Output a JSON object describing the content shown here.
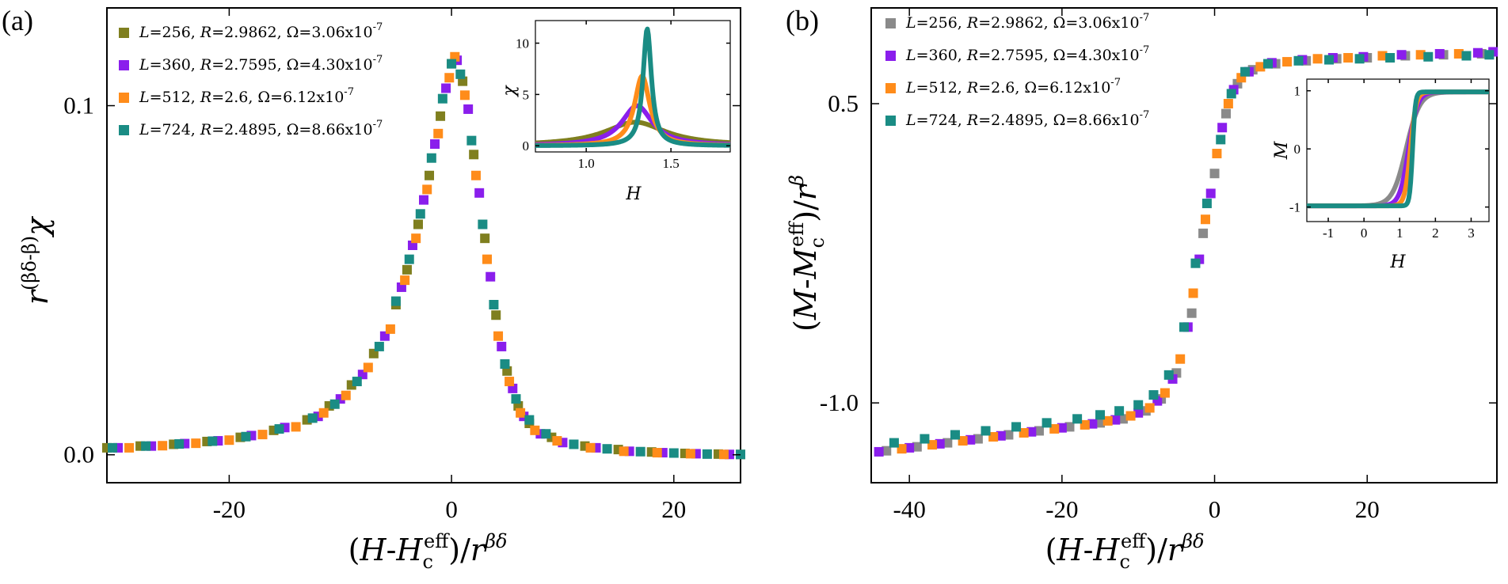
{
  "colors": {
    "olive": "#7f7f1f",
    "gray": "#8a8a8a",
    "purple": "#8a1eec",
    "orange": "#ff8c1a",
    "teal": "#1a8c84"
  },
  "chart_data": [
    {
      "type": "scatter",
      "panel_label": "(a)",
      "xlabel": "(H-H_c^eff)/r^βδ",
      "ylabel": "r^(βδ-β) χ",
      "xlim": [
        -31,
        26
      ],
      "ylim": [
        -0.008,
        0.128
      ],
      "xticks": [
        -20,
        0,
        20
      ],
      "xtick_labels": [
        "-20",
        "0",
        "20"
      ],
      "yticks": [
        0.0,
        0.1
      ],
      "ytick_labels": [
        "0.0",
        "0.1"
      ],
      "legend_position": "top-left",
      "series": [
        {
          "name": "L=256, R=2.9862, Ω=3.06x10-7",
          "L": "256",
          "R": "2.9862",
          "Omega": "3.06x10",
          "Omega_exp": "-7",
          "color": "#7f7f1f",
          "x": [
            -31,
            -28,
            -25,
            -22,
            -19,
            -16,
            -13,
            -11,
            -9,
            -7,
            -5,
            -4,
            -3,
            -2,
            -1,
            0,
            1,
            2,
            3,
            4,
            5,
            6,
            7,
            9,
            12,
            15,
            18,
            21,
            24,
            26
          ],
          "y": [
            0.002,
            0.0025,
            0.003,
            0.0038,
            0.005,
            0.007,
            0.01,
            0.014,
            0.02,
            0.029,
            0.043,
            0.053,
            0.066,
            0.08,
            0.097,
            0.112,
            0.107,
            0.086,
            0.062,
            0.04,
            0.024,
            0.014,
            0.009,
            0.005,
            0.0025,
            0.0015,
            0.0008,
            0.0004,
            0.0002,
            0.0001
          ]
        },
        {
          "name": "L=360, R=2.7595, Ω=4.30x10-7",
          "L": "360",
          "R": "2.7595",
          "Omega": "4.30x10",
          "Omega_exp": "-7",
          "color": "#8a1eec",
          "x": [
            -30,
            -27,
            -24,
            -21,
            -18,
            -15,
            -12,
            -10,
            -8,
            -6,
            -4.5,
            -3.5,
            -2.5,
            -1.5,
            -0.5,
            0.5,
            1.5,
            2.5,
            3.5,
            4.5,
            5.5,
            6.5,
            8,
            10,
            13,
            16,
            19,
            22,
            25
          ],
          "y": [
            0.002,
            0.0025,
            0.0032,
            0.004,
            0.0055,
            0.0078,
            0.011,
            0.016,
            0.023,
            0.034,
            0.048,
            0.06,
            0.073,
            0.089,
            0.105,
            0.113,
            0.099,
            0.075,
            0.051,
            0.031,
            0.019,
            0.011,
            0.006,
            0.0035,
            0.002,
            0.001,
            0.0006,
            0.0003,
            0.0001
          ]
        },
        {
          "name": "L=512, R=2.6, Ω=6.12x10-7",
          "L": "512",
          "R": "2.6",
          "Omega": "6.12x10",
          "Omega_exp": "-7",
          "color": "#ff8c1a",
          "x": [
            -29,
            -26,
            -23,
            -20,
            -17,
            -14,
            -11.5,
            -9.5,
            -7.5,
            -5.5,
            -4.2,
            -3.2,
            -2.2,
            -1.2,
            -0.2,
            0.3,
            1.2,
            2.2,
            3.2,
            4.2,
            5.2,
            6.2,
            7.5,
            9.5,
            12.5,
            15.5,
            18.5,
            21.5,
            24.5
          ],
          "y": [
            0.002,
            0.0026,
            0.0033,
            0.0042,
            0.0058,
            0.008,
            0.012,
            0.017,
            0.025,
            0.036,
            0.05,
            0.062,
            0.076,
            0.092,
            0.108,
            0.114,
            0.103,
            0.08,
            0.056,
            0.034,
            0.021,
            0.012,
            0.007,
            0.004,
            0.002,
            0.001,
            0.0006,
            0.0003,
            0.0001
          ]
        },
        {
          "name": "L=724, R=2.4895, Ω=8.66x10-7",
          "L": "724",
          "R": "2.4895",
          "Omega": "8.66x10",
          "Omega_exp": "-7",
          "color": "#1a8c84",
          "x": [
            -30.5,
            -27.5,
            -24.5,
            -21.5,
            -18.5,
            -15.5,
            -12.5,
            -10.5,
            -8.5,
            -6.5,
            -5,
            -3.8,
            -2.8,
            -1.8,
            -0.8,
            0,
            0.8,
            1.8,
            2.8,
            3.8,
            4.8,
            5.8,
            7,
            8.5,
            11,
            14,
            17,
            20,
            23,
            26
          ],
          "y": [
            0.002,
            0.0025,
            0.0031,
            0.0039,
            0.0052,
            0.0074,
            0.0105,
            0.0145,
            0.021,
            0.031,
            0.044,
            0.056,
            0.069,
            0.085,
            0.102,
            0.112,
            0.109,
            0.09,
            0.066,
            0.043,
            0.026,
            0.016,
            0.01,
            0.006,
            0.003,
            0.0017,
            0.0009,
            0.0005,
            0.0002,
            0.0001
          ]
        }
      ],
      "inset": {
        "xlabel": "H",
        "ylabel": "χ",
        "xlim": [
          0.7,
          1.85
        ],
        "ylim": [
          -0.6,
          12.2
        ],
        "xticks": [
          1.0,
          1.5
        ],
        "xtick_labels": [
          "1.0",
          "1.5"
        ],
        "yticks": [
          0,
          5,
          10
        ],
        "ytick_labels": [
          "0",
          "5",
          "10"
        ],
        "peaks": [
          {
            "color": "#7f7f1f",
            "H": 1.29,
            "height": 2.3,
            "width": 0.22
          },
          {
            "color": "#8a1eec",
            "H": 1.3,
            "height": 3.9,
            "width": 0.11
          },
          {
            "color": "#ff8c1a",
            "H": 1.33,
            "height": 6.8,
            "width": 0.055
          },
          {
            "color": "#1a8c84",
            "H": 1.36,
            "height": 11.4,
            "width": 0.03
          }
        ]
      }
    },
    {
      "type": "scatter",
      "panel_label": "(b)",
      "xlabel": "(H-H_c^eff)/r^βδ",
      "ylabel": "(M-M_c^eff)/r^β",
      "xlim": [
        -45,
        37
      ],
      "ylim": [
        -1.4,
        0.98
      ],
      "xticks": [
        -40,
        -20,
        0,
        20
      ],
      "xtick_labels": [
        "-40",
        "-20",
        "0",
        "20"
      ],
      "yticks": [
        -1.0,
        0.5
      ],
      "ytick_labels": [
        "-1.0",
        "0.5"
      ],
      "legend_position": "top-left",
      "series": [
        {
          "name": "L=256, R=2.9862, Ω=3.06x10-7",
          "L": "256",
          "R": "2.9862",
          "Omega": "3.06x10",
          "Omega_exp": "-7",
          "color": "#8a8a8a",
          "x": [
            -43,
            -39,
            -35,
            -31,
            -27,
            -23,
            -19,
            -15,
            -12,
            -9,
            -7,
            -5,
            -3,
            -1.5,
            0,
            1.5,
            3,
            5,
            8,
            12,
            16,
            20,
            25,
            30,
            35
          ],
          "y": [
            -1.24,
            -1.22,
            -1.2,
            -1.18,
            -1.16,
            -1.14,
            -1.12,
            -1.1,
            -1.08,
            -1.04,
            -0.98,
            -0.85,
            -0.55,
            -0.15,
            0.15,
            0.45,
            0.6,
            0.67,
            0.7,
            0.715,
            0.725,
            0.73,
            0.74,
            0.745,
            0.75
          ]
        },
        {
          "name": "L=360, R=2.7595, Ω=4.30x10-7",
          "L": "360",
          "R": "2.7595",
          "Omega": "4.30x10",
          "Omega_exp": "-7",
          "color": "#8a1eec",
          "x": [
            -44,
            -40,
            -36,
            -32,
            -28,
            -24,
            -20,
            -16,
            -13,
            -10,
            -7.5,
            -5.5,
            -3.5,
            -2,
            -0.5,
            1,
            2.5,
            4.5,
            7.5,
            11.5,
            15.5,
            19.5,
            24.5,
            29.5,
            34.5,
            36.5
          ],
          "y": [
            -1.245,
            -1.225,
            -1.205,
            -1.185,
            -1.165,
            -1.145,
            -1.125,
            -1.105,
            -1.085,
            -1.05,
            -0.99,
            -0.88,
            -0.62,
            -0.28,
            0.05,
            0.38,
            0.57,
            0.66,
            0.705,
            0.72,
            0.73,
            0.735,
            0.745,
            0.75,
            0.755,
            0.76
          ]
        },
        {
          "name": "L=512, R=2.6, Ω=6.12x10-7",
          "L": "512",
          "R": "2.6",
          "Omega": "6.12x10",
          "Omega_exp": "-7",
          "color": "#ff8c1a",
          "x": [
            -41,
            -37,
            -33,
            -29,
            -25,
            -21,
            -17,
            -14,
            -11,
            -8.5,
            -6.5,
            -4.5,
            -2.8,
            -1.2,
            0.3,
            1.8,
            3.5,
            6,
            9.5,
            13.5,
            17.5,
            22,
            27,
            32
          ],
          "y": [
            -1.23,
            -1.21,
            -1.19,
            -1.17,
            -1.15,
            -1.13,
            -1.11,
            -1.09,
            -1.065,
            -1.025,
            -0.95,
            -0.78,
            -0.45,
            -0.08,
            0.25,
            0.5,
            0.63,
            0.685,
            0.71,
            0.725,
            0.73,
            0.74,
            0.745,
            0.75
          ]
        },
        {
          "name": "L=724, R=2.4895, Ω=8.66x10-7",
          "L": "724",
          "R": "2.4895",
          "Omega": "8.66x10",
          "Omega_exp": "-7",
          "color": "#1a8c84",
          "x": [
            -42,
            -38,
            -34,
            -30,
            -26,
            -22,
            -18,
            -15,
            -12.5,
            -10,
            -8,
            -6,
            -4,
            -2.5,
            -1,
            0.8,
            2.2,
            4,
            7,
            11,
            15,
            19,
            23,
            28,
            33,
            36
          ],
          "y": [
            -1.2,
            -1.18,
            -1.16,
            -1.14,
            -1.12,
            -1.1,
            -1.08,
            -1.06,
            -1.04,
            -1.01,
            -0.96,
            -0.86,
            -0.62,
            -0.3,
            0.0,
            0.32,
            0.55,
            0.66,
            0.7,
            0.715,
            0.72,
            0.725,
            0.73,
            0.735,
            0.74,
            0.745
          ]
        }
      ],
      "inset": {
        "xlabel": "H",
        "ylabel": "M",
        "xlim": [
          -1.6,
          3.5
        ],
        "ylim": [
          -1.25,
          1.2
        ],
        "xticks": [
          -1,
          0,
          1,
          2,
          3
        ],
        "xtick_labels": [
          "-1",
          "0",
          "1",
          "2",
          "3"
        ],
        "yticks": [
          -1,
          0,
          1
        ],
        "ytick_labels": [
          "-1",
          "0",
          "1"
        ],
        "curves": [
          {
            "color": "#8a8a8a",
            "H0": 1.18,
            "w": 0.38
          },
          {
            "color": "#8a1eec",
            "H0": 1.25,
            "w": 0.25
          },
          {
            "color": "#ff8c1a",
            "H0": 1.3,
            "w": 0.16
          },
          {
            "color": "#1a8c84",
            "H0": 1.36,
            "w": 0.08
          }
        ]
      }
    }
  ]
}
